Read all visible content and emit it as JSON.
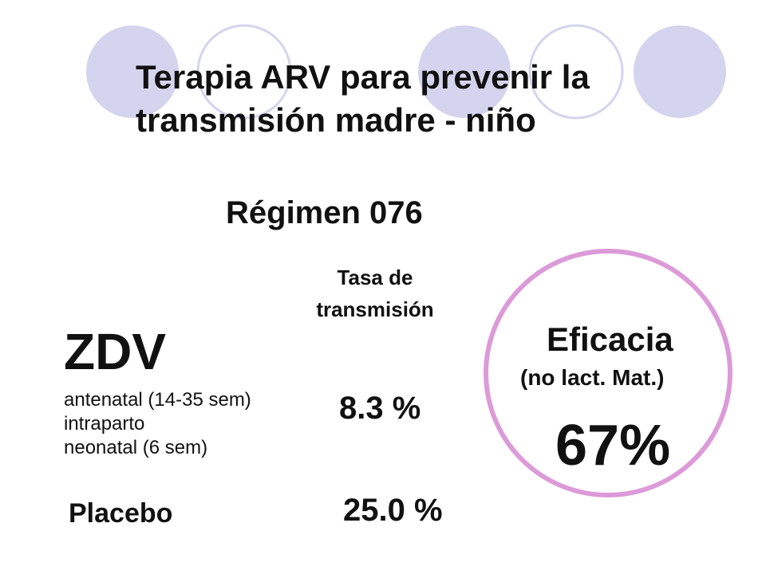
{
  "title": {
    "line1": "Terapia ARV para prevenir la",
    "line2": "transmisión madre - niño"
  },
  "subtitle": "Régimen 076",
  "column_header": {
    "line1": "Tasa de",
    "line2": "transmisión"
  },
  "zdv": {
    "label": "ZDV",
    "details": [
      "antenatal (14-35 sem)",
      "intraparto",
      "neonatal (6 sem)"
    ],
    "rate": "8.3 %"
  },
  "placebo": {
    "label": "Placebo",
    "rate": "25.0 %"
  },
  "efficacy": {
    "label": "Eficacia",
    "note": "(no lact. Mat.)",
    "value": "67%"
  }
}
